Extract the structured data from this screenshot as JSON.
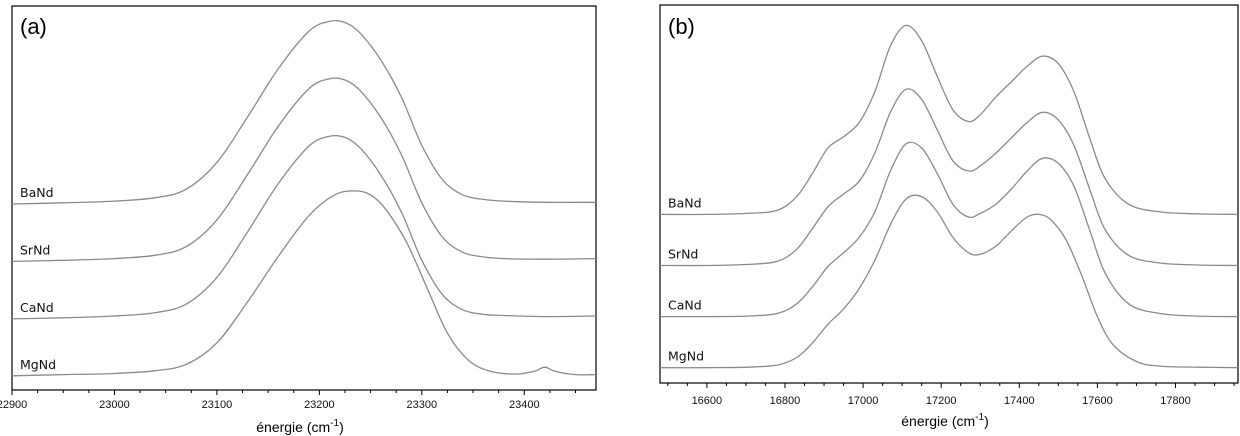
{
  "chart_data": [
    {
      "type": "line",
      "panel_label": "(a)",
      "xlabel": "énergie (cm",
      "xlabel_sup": "-1",
      "xlabel_close": ")",
      "xlim": [
        22900,
        23470
      ],
      "xticks": [
        22900,
        23000,
        23100,
        23200,
        23300,
        23400
      ],
      "grid": false,
      "series": [
        {
          "name": "BaNd",
          "x": [
            22900,
            22950,
            23000,
            23040,
            23070,
            23100,
            23130,
            23160,
            23190,
            23210,
            23225,
            23240,
            23260,
            23280,
            23300,
            23320,
            23340,
            23360,
            23380,
            23420,
            23470
          ],
          "y": [
            4.02,
            4.04,
            4.07,
            4.13,
            4.28,
            4.75,
            5.55,
            6.4,
            7.06,
            7.23,
            7.21,
            7.02,
            6.55,
            5.9,
            5.05,
            4.45,
            4.18,
            4.1,
            4.07,
            4.05,
            4.05
          ]
        },
        {
          "name": "SrNd",
          "x": [
            22900,
            22950,
            23000,
            23040,
            23070,
            23100,
            23130,
            23160,
            23190,
            23210,
            23225,
            23240,
            23260,
            23280,
            23300,
            23320,
            23340,
            23360,
            23380,
            23420,
            23470
          ],
          "y": [
            3.01,
            3.03,
            3.06,
            3.12,
            3.27,
            3.74,
            4.54,
            5.39,
            6.05,
            6.22,
            6.2,
            6.01,
            5.54,
            4.89,
            4.04,
            3.44,
            3.17,
            3.09,
            3.06,
            3.05,
            3.06
          ]
        },
        {
          "name": "CaNd",
          "x": [
            22900,
            22950,
            23000,
            23040,
            23070,
            23100,
            23130,
            23160,
            23190,
            23210,
            23225,
            23240,
            23260,
            23280,
            23300,
            23320,
            23340,
            23360,
            23380,
            23420,
            23470
          ],
          "y": [
            2.0,
            2.02,
            2.05,
            2.11,
            2.26,
            2.73,
            3.53,
            4.38,
            5.04,
            5.21,
            5.19,
            5.0,
            4.53,
            3.88,
            3.03,
            2.43,
            2.16,
            2.08,
            2.06,
            2.04,
            2.05
          ]
        },
        {
          "name": "MgNd",
          "x": [
            22900,
            22950,
            23000,
            23040,
            23070,
            23100,
            23130,
            23160,
            23190,
            23215,
            23235,
            23250,
            23265,
            23285,
            23305,
            23325,
            23345,
            23365,
            23390,
            23410,
            23420,
            23430,
            23450,
            23470
          ],
          "y": [
            1.0,
            1.02,
            1.04,
            1.09,
            1.2,
            1.58,
            2.3,
            3.1,
            3.82,
            4.18,
            4.25,
            4.18,
            3.92,
            3.35,
            2.55,
            1.75,
            1.28,
            1.09,
            1.03,
            1.08,
            1.15,
            1.08,
            1.02,
            1.02
          ]
        }
      ]
    },
    {
      "type": "line",
      "panel_label": "(b)",
      "xlabel": "énergie (cm",
      "xlabel_sup": "-1",
      "xlabel_close": ")",
      "xlim": [
        16480,
        17960
      ],
      "xticks": [
        16600,
        16800,
        17000,
        17200,
        17400,
        17600,
        17800
      ],
      "grid": false,
      "series": [
        {
          "name": "BaNd",
          "x": [
            16480,
            16600,
            16700,
            16780,
            16830,
            16870,
            16910,
            16950,
            16990,
            17030,
            17070,
            17110,
            17150,
            17190,
            17230,
            17270,
            17300,
            17340,
            17380,
            17420,
            17460,
            17500,
            17540,
            17580,
            17620,
            17680,
            17760,
            17860,
            17960
          ],
          "y": [
            4.0,
            4.0,
            4.02,
            4.08,
            4.35,
            4.8,
            5.3,
            5.52,
            5.8,
            6.4,
            7.3,
            7.7,
            7.4,
            6.7,
            6.05,
            5.82,
            5.95,
            6.3,
            6.6,
            6.9,
            7.1,
            6.95,
            6.4,
            5.5,
            4.7,
            4.2,
            4.05,
            4.01,
            4.0
          ]
        },
        {
          "name": "SrNd",
          "x": [
            16480,
            16600,
            16700,
            16780,
            16830,
            16870,
            16910,
            16950,
            16990,
            17030,
            17070,
            17110,
            17150,
            17190,
            17230,
            17270,
            17300,
            17340,
            17380,
            17420,
            17460,
            17500,
            17540,
            17580,
            17620,
            17680,
            17760,
            17860,
            17960
          ],
          "y": [
            3.0,
            3.0,
            3.02,
            3.08,
            3.32,
            3.72,
            4.15,
            4.4,
            4.65,
            5.2,
            6.0,
            6.45,
            6.25,
            5.65,
            5.05,
            4.85,
            4.95,
            5.2,
            5.5,
            5.8,
            6.0,
            5.85,
            5.35,
            4.5,
            3.7,
            3.2,
            3.05,
            3.01,
            3.0
          ]
        },
        {
          "name": "CaNd",
          "x": [
            16480,
            16600,
            16700,
            16780,
            16830,
            16870,
            16910,
            16950,
            16990,
            17030,
            17070,
            17110,
            17150,
            17190,
            17230,
            17270,
            17300,
            17340,
            17380,
            17420,
            17460,
            17500,
            17540,
            17580,
            17620,
            17680,
            17760,
            17860,
            17960
          ],
          "y": [
            2.0,
            2.0,
            2.01,
            2.06,
            2.25,
            2.58,
            2.98,
            3.25,
            3.55,
            4.05,
            4.85,
            5.38,
            5.3,
            4.8,
            4.2,
            3.95,
            4.02,
            4.2,
            4.5,
            4.85,
            5.1,
            5.0,
            4.55,
            3.7,
            2.85,
            2.25,
            2.06,
            2.01,
            2.0
          ]
        },
        {
          "name": "MgNd",
          "x": [
            16480,
            16600,
            16700,
            16780,
            16830,
            16870,
            16910,
            16950,
            16990,
            17030,
            17070,
            17110,
            17150,
            17190,
            17230,
            17270,
            17300,
            17340,
            17380,
            17420,
            17450,
            17480,
            17520,
            17560,
            17600,
            17640,
            17700,
            17760,
            17860,
            17960
          ],
          "y": [
            1.0,
            1.0,
            1.01,
            1.05,
            1.2,
            1.48,
            1.85,
            2.15,
            2.55,
            3.1,
            3.8,
            4.3,
            4.35,
            4.05,
            3.55,
            3.25,
            3.22,
            3.38,
            3.68,
            3.95,
            4.0,
            3.9,
            3.5,
            2.8,
            2.0,
            1.45,
            1.12,
            1.03,
            1.01,
            1.0
          ]
        }
      ]
    }
  ]
}
